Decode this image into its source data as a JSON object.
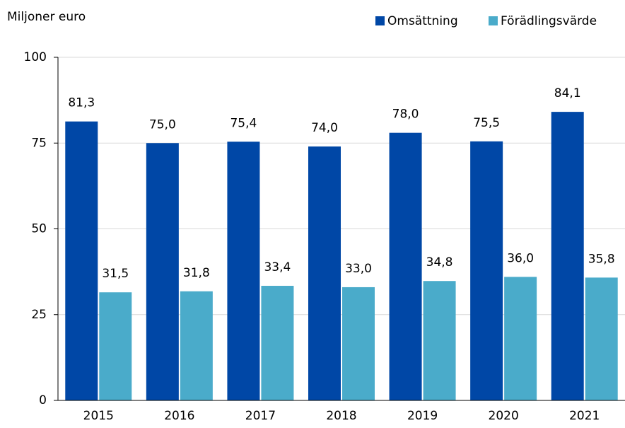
{
  "chart_data": {
    "type": "bar",
    "y_label": "Miljoner euro",
    "categories": [
      "2015",
      "2016",
      "2017",
      "2018",
      "2019",
      "2020",
      "2021"
    ],
    "series": [
      {
        "name": "Omsättning",
        "color": "#0047a6",
        "values": [
          81.3,
          75.0,
          75.4,
          74.0,
          78.0,
          75.5,
          84.1
        ],
        "value_labels": [
          "81,3",
          "75,0",
          "75,4",
          "74,0",
          "78,0",
          "75,5",
          "84,1"
        ]
      },
      {
        "name": "Förädlingsvärde",
        "color": "#4aabca",
        "values": [
          31.5,
          31.8,
          33.4,
          33.0,
          34.8,
          36.0,
          35.8
        ],
        "value_labels": [
          "31,5",
          "31,8",
          "33,4",
          "33,0",
          "34,8",
          "36,0",
          "35,8"
        ]
      }
    ],
    "ylim": [
      0,
      100
    ],
    "yticks": [
      0,
      25,
      50,
      75,
      100
    ],
    "grid": true,
    "legend": "top-right"
  }
}
